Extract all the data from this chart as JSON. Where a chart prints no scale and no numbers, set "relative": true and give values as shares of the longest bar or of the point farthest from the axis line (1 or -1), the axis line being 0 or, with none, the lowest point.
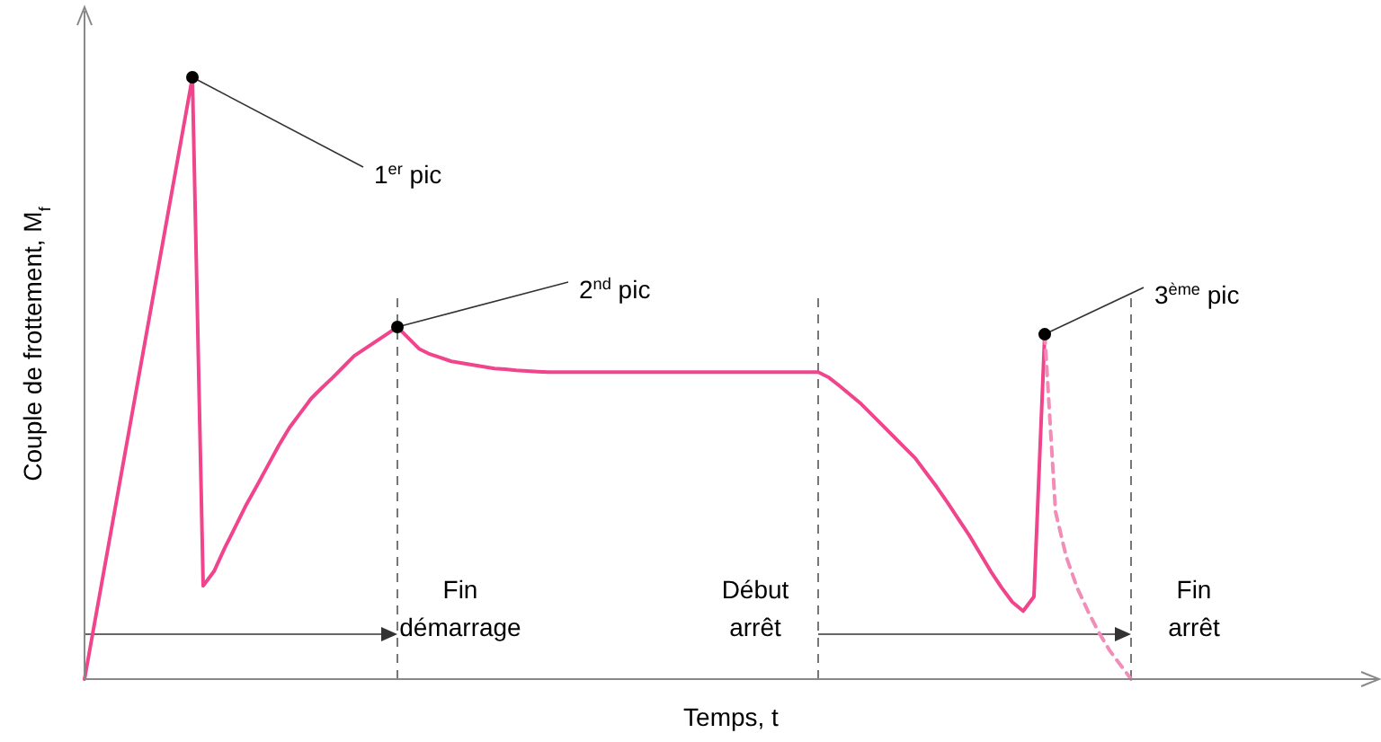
{
  "chart_data": {
    "type": "line",
    "relative": true,
    "xlabel": "Temps, t",
    "ylabel": "Couple de frottement, M$_{f}$",
    "categories": [
      null,
      null,
      null,
      null,
      null,
      null,
      null,
      null,
      null,
      null,
      null,
      null,
      null,
      null,
      null,
      null,
      null,
      null,
      null,
      null,
      null,
      null,
      null,
      null,
      null,
      null,
      null,
      null,
      null,
      null,
      null,
      null,
      null,
      null,
      null,
      null,
      null,
      null,
      null,
      null,
      null,
      null,
      null,
      null,
      null,
      null,
      null,
      null,
      null,
      null,
      null,
      null,
      null,
      null,
      null,
      null,
      null,
      null,
      null,
      null,
      null,
      null,
      null,
      null,
      null,
      null,
      null,
      null,
      null,
      null,
      null,
      null,
      null,
      null,
      null,
      null,
      null,
      null,
      null,
      null,
      null,
      null,
      null,
      null,
      null,
      null,
      null,
      null,
      null,
      null,
      null,
      null,
      null,
      null,
      null,
      null,
      null,
      null,
      null,
      null,
      null,
      null,
      null,
      null,
      null,
      null,
      null,
      null,
      null,
      null,
      null,
      null,
      null,
      null,
      null,
      null,
      null,
      null,
      null,
      null
    ],
    "series": [
      {
        "color": "#f0448c",
        "line_style": "solid",
        "values": [
          0,
          0.1,
          0.2,
          0.3,
          0.4,
          0.5,
          0.6,
          0.7,
          0.8,
          0.9,
          1,
          0.155,
          0.179,
          0.218,
          0.254,
          0.29,
          0.322,
          0.355,
          0.388,
          0.418,
          0.442,
          0.466,
          0.484,
          0.501,
          0.519,
          0.537,
          0.549,
          0.561,
          0.573,
          0.585,
          0.567,
          0.549,
          0.54,
          0.534,
          0.528,
          0.525,
          0.522,
          0.519,
          0.516,
          0.515,
          0.513,
          0.512,
          0.511,
          0.51,
          0.51,
          0.51,
          0.51,
          0.51,
          0.51,
          0.51,
          0.51,
          0.51,
          0.51,
          0.51,
          0.51,
          0.51,
          0.51,
          0.51,
          0.51,
          0.51,
          0.51,
          0.51,
          0.51,
          0.51,
          0.51,
          0.51,
          0.51,
          0.51,
          0.51,
          0.501,
          0.487,
          0.472,
          0.457,
          0.439,
          0.421,
          0.403,
          0.385,
          0.367,
          0.343,
          0.319,
          0.293,
          0.266,
          0.239,
          0.209,
          0.179,
          0.152,
          0.128,
          0.113,
          0.137,
          0.573,
          null,
          null,
          null,
          null,
          null,
          null,
          null,
          null,
          null,
          null,
          null,
          null,
          null,
          null,
          null,
          null,
          null,
          null,
          null,
          null,
          null,
          null,
          null,
          null,
          null,
          null,
          null,
          null,
          null,
          null
        ]
      },
      {
        "color": "#f28cb8",
        "line_style": "dashed",
        "values": [
          null,
          null,
          null,
          null,
          null,
          null,
          null,
          null,
          null,
          null,
          null,
          null,
          null,
          null,
          null,
          null,
          null,
          null,
          null,
          null,
          null,
          null,
          null,
          null,
          null,
          null,
          null,
          null,
          null,
          null,
          null,
          null,
          null,
          null,
          null,
          null,
          null,
          null,
          null,
          null,
          null,
          null,
          null,
          null,
          null,
          null,
          null,
          null,
          null,
          null,
          null,
          null,
          null,
          null,
          null,
          null,
          null,
          null,
          null,
          null,
          null,
          null,
          null,
          null,
          null,
          null,
          null,
          null,
          null,
          null,
          null,
          null,
          null,
          null,
          null,
          null,
          null,
          null,
          null,
          null,
          null,
          null,
          null,
          null,
          null,
          null,
          null,
          null,
          null,
          0.573,
          0.278,
          0.203,
          0.152,
          0.113,
          0.078,
          0.048,
          0.024,
          0,
          null,
          null,
          null,
          null,
          null,
          null,
          null,
          null,
          null,
          null,
          null,
          null,
          null,
          null,
          null,
          null,
          null,
          null,
          null,
          null,
          null,
          null
        ]
      }
    ],
    "annotations": [
      "1$^{er}$ pic",
      "2$^{nd}$ pic",
      "3$^{ème}$ pic",
      "Fin démarrage",
      "Début arrêt",
      "Fin arrêt"
    ]
  }
}
